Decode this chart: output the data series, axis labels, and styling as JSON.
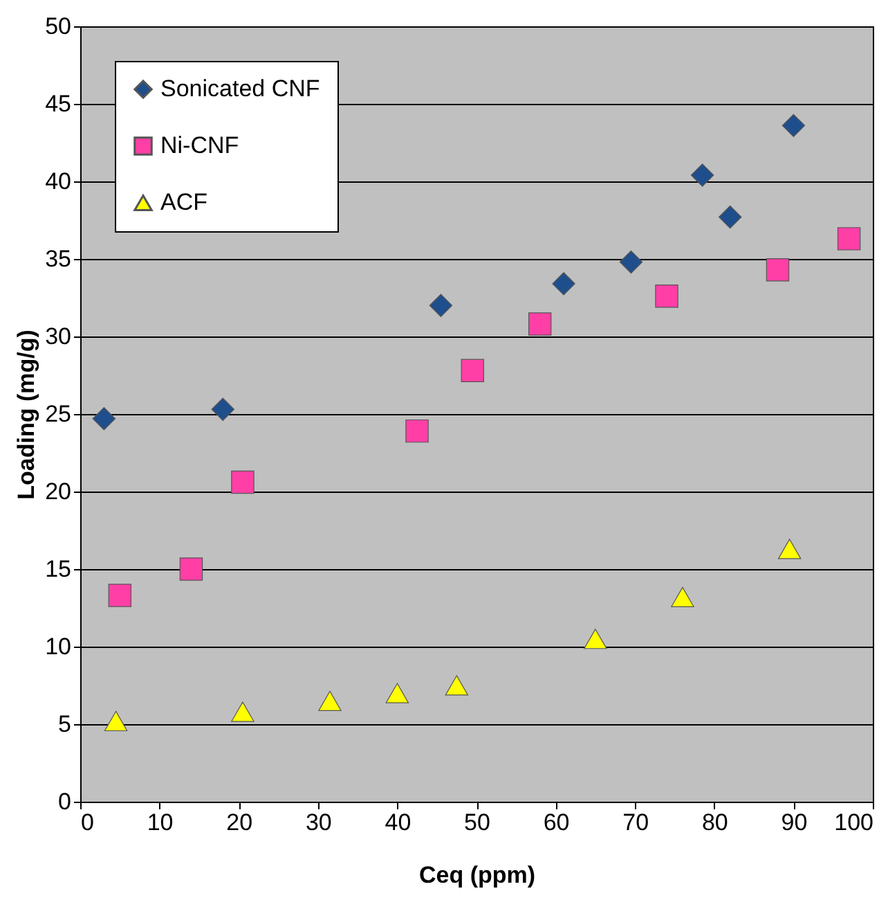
{
  "chart_data": {
    "type": "scatter",
    "xlabel": "Ceq (ppm)",
    "ylabel": "Loading (mg/g)",
    "xlim": [
      0,
      100
    ],
    "xticks": [
      0,
      10,
      20,
      30,
      40,
      50,
      60,
      70,
      80,
      90,
      100
    ],
    "ylim": [
      0,
      50
    ],
    "yticks": [
      0,
      5,
      10,
      15,
      20,
      25,
      30,
      35,
      40,
      45,
      50
    ],
    "grid": "y",
    "legend": "top left",
    "series": [
      {
        "name": "Sonicated CNF",
        "color": "#1f4e8c",
        "marker": "diamond",
        "x": [
          3,
          18,
          45.5,
          61,
          69.5,
          78.5,
          82,
          90
        ],
        "values": [
          24.7,
          25.3,
          32,
          33.4,
          34.8,
          40.4,
          37.7,
          43.6
        ]
      },
      {
        "name": "Ni-CNF",
        "color": "#ff3fa6",
        "marker": "square",
        "x": [
          5,
          14,
          20.5,
          42.5,
          49.5,
          58,
          74,
          88,
          97
        ],
        "values": [
          13.3,
          15,
          20.6,
          23.9,
          27.8,
          30.8,
          32.6,
          34.3,
          36.3
        ]
      },
      {
        "name": "ACF",
        "color": "#ffff00",
        "marker": "triangle",
        "x": [
          4.5,
          20.5,
          31.5,
          40,
          47.5,
          65,
          76,
          89.5
        ],
        "values": [
          5.2,
          5.8,
          6.5,
          7,
          7.5,
          10.5,
          13.2,
          16.3
        ]
      }
    ]
  }
}
